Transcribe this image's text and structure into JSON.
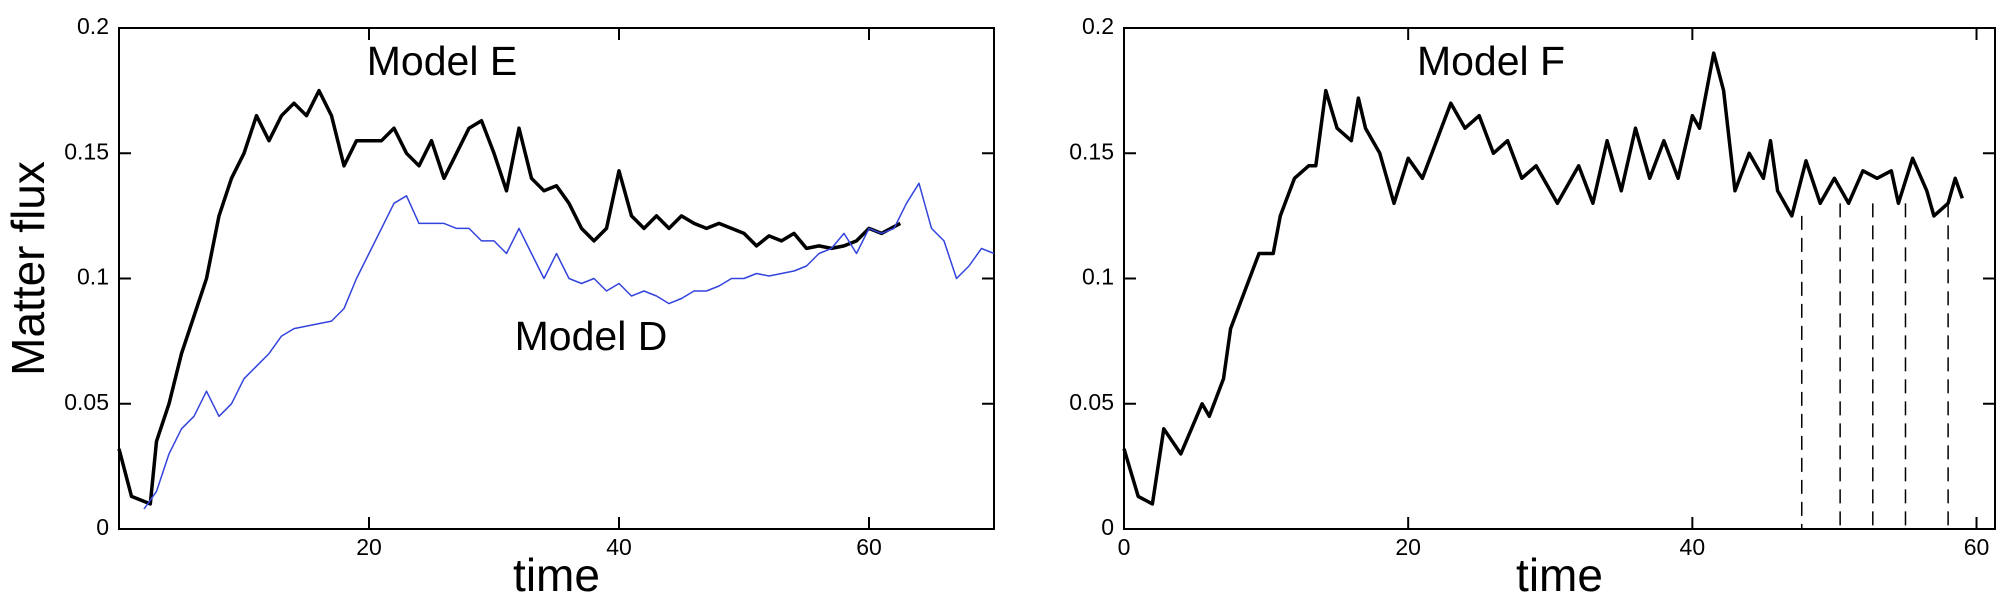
{
  "chart_data": [
    {
      "type": "line",
      "ylabel": "Matter flux",
      "xlabel": "time",
      "annotations": [
        "Model E",
        "Model D"
      ],
      "xlim": [
        0,
        70
      ],
      "xticks": [
        20,
        40,
        60
      ],
      "ylim": [
        0,
        0.2
      ],
      "yticks": [
        0,
        0.05,
        0.1,
        0.15,
        0.2
      ],
      "series": [
        {
          "color": "#000000",
          "x": [
            0,
            1,
            2.5,
            3,
            4,
            5,
            6,
            7,
            8,
            9,
            10,
            11,
            12,
            13,
            14,
            15,
            16,
            17,
            18,
            19,
            20,
            21,
            22,
            23,
            24,
            25,
            26,
            27,
            28,
            29,
            30,
            31,
            32,
            33,
            34,
            35,
            36,
            37,
            38,
            39,
            40,
            41,
            42,
            43,
            44,
            45,
            46,
            47,
            48,
            49,
            50,
            51,
            52,
            53,
            54,
            55,
            56,
            57,
            58,
            59,
            60,
            61,
            62.5
          ],
          "values": [
            0.032,
            0.013,
            0.01,
            0.035,
            0.05,
            0.07,
            0.085,
            0.1,
            0.125,
            0.14,
            0.15,
            0.165,
            0.155,
            0.165,
            0.17,
            0.165,
            0.175,
            0.165,
            0.145,
            0.155,
            0.155,
            0.155,
            0.16,
            0.15,
            0.145,
            0.155,
            0.14,
            0.15,
            0.16,
            0.163,
            0.15,
            0.135,
            0.16,
            0.14,
            0.135,
            0.137,
            0.13,
            0.12,
            0.115,
            0.12,
            0.143,
            0.125,
            0.12,
            0.125,
            0.12,
            0.125,
            0.122,
            0.12,
            0.122,
            0.12,
            0.118,
            0.113,
            0.117,
            0.115,
            0.118,
            0.112,
            0.113,
            0.112,
            0.113,
            0.115,
            0.12,
            0.118,
            0.122
          ]
        },
        {
          "color": "#3344dd",
          "x": [
            2,
            3,
            4,
            5,
            6,
            7,
            8,
            9,
            10,
            11,
            12,
            13,
            14,
            15,
            16,
            17,
            18,
            19,
            20,
            21,
            22,
            23,
            24,
            25,
            26,
            27,
            28,
            29,
            30,
            31,
            32,
            33,
            34,
            35,
            36,
            37,
            38,
            39,
            40,
            41,
            42,
            43,
            44,
            45,
            46,
            47,
            48,
            49,
            50,
            51,
            52,
            53,
            54,
            55,
            56,
            57,
            58,
            59,
            60,
            61,
            62,
            63,
            64,
            65,
            66,
            67,
            68,
            69,
            70
          ],
          "values": [
            0.008,
            0.015,
            0.03,
            0.04,
            0.045,
            0.055,
            0.045,
            0.05,
            0.06,
            0.065,
            0.07,
            0.077,
            0.08,
            0.081,
            0.082,
            0.083,
            0.088,
            0.1,
            0.11,
            0.12,
            0.13,
            0.133,
            0.122,
            0.122,
            0.122,
            0.12,
            0.12,
            0.115,
            0.115,
            0.11,
            0.12,
            0.11,
            0.1,
            0.11,
            0.1,
            0.098,
            0.1,
            0.095,
            0.098,
            0.093,
            0.095,
            0.093,
            0.09,
            0.092,
            0.095,
            0.095,
            0.097,
            0.1,
            0.1,
            0.102,
            0.101,
            0.102,
            0.103,
            0.105,
            0.11,
            0.112,
            0.118,
            0.11,
            0.12,
            0.118,
            0.12,
            0.13,
            0.138,
            0.12,
            0.115,
            0.1,
            0.105,
            0.112,
            0.11
          ]
        }
      ]
    },
    {
      "type": "line",
      "xlabel": "time",
      "annotations": [
        "Model F"
      ],
      "xlim": [
        0,
        61.3
      ],
      "xticks": [
        0,
        20,
        40,
        60
      ],
      "ylim": [
        0,
        0.2
      ],
      "yticks": [
        0,
        0.05,
        0.1,
        0.15,
        0.2
      ],
      "series": [
        {
          "color": "#000000",
          "x": [
            0,
            1,
            2,
            2.8,
            4,
            5.5,
            6,
            7,
            7.5,
            8.5,
            9.5,
            10.5,
            11,
            12,
            13,
            13.5,
            14.2,
            15,
            16,
            16.5,
            17,
            18,
            19,
            20,
            21,
            22,
            23,
            24,
            25,
            26,
            27,
            28,
            29,
            30.5,
            32,
            33,
            34,
            35,
            36,
            37,
            38,
            39,
            40,
            40.5,
            41.5,
            42.2,
            43,
            44,
            45,
            45.5,
            46,
            47,
            48,
            49,
            50,
            51,
            52,
            53,
            54,
            54.5,
            55.5,
            56.5,
            57,
            58,
            58.5,
            59
          ],
          "values": [
            0.032,
            0.013,
            0.01,
            0.04,
            0.03,
            0.05,
            0.045,
            0.06,
            0.08,
            0.095,
            0.11,
            0.11,
            0.125,
            0.14,
            0.145,
            0.145,
            0.175,
            0.16,
            0.155,
            0.172,
            0.16,
            0.15,
            0.13,
            0.148,
            0.14,
            0.155,
            0.17,
            0.16,
            0.165,
            0.15,
            0.155,
            0.14,
            0.145,
            0.13,
            0.145,
            0.13,
            0.155,
            0.135,
            0.16,
            0.14,
            0.155,
            0.14,
            0.165,
            0.16,
            0.19,
            0.175,
            0.135,
            0.15,
            0.14,
            0.155,
            0.135,
            0.125,
            0.147,
            0.13,
            0.14,
            0.13,
            0.143,
            0.14,
            0.143,
            0.13,
            0.148,
            0.135,
            0.125,
            0.13,
            0.14,
            0.132
          ]
        }
      ],
      "vlines": [
        {
          "x": 47.7,
          "y": 0.125
        },
        {
          "x": 50.4,
          "y": 0.13
        },
        {
          "x": 52.7,
          "y": 0.13
        },
        {
          "x": 55,
          "y": 0.13
        },
        {
          "x": 58,
          "y": 0.13
        }
      ]
    }
  ]
}
